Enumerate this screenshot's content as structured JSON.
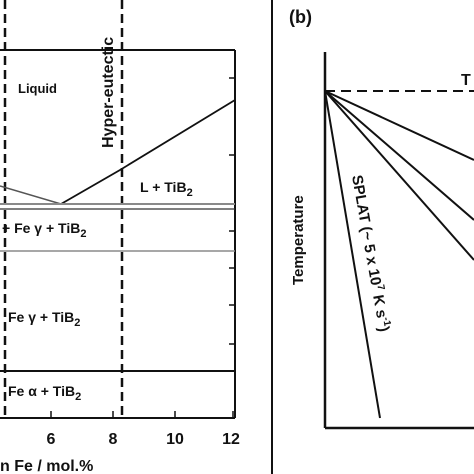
{
  "panel_a": {
    "x_axis": {
      "label": "n Fe / mol.%",
      "ticks": [
        "6",
        "8",
        "10",
        "12"
      ]
    },
    "eutectic_label": "Hyper-eutectic",
    "regions": {
      "liquid": "Liquid",
      "l_tib2": {
        "main": "L + TiB",
        "sub": "2"
      },
      "fegamma_tib2_upper": {
        "main": "+ Fe γ + TiB",
        "sub": "2"
      },
      "fegamma_tib2_lower": {
        "main": "Fe γ + TiB",
        "sub": "2"
      },
      "fealpha_tib2": {
        "main": "Fe α + TiB",
        "sub": "2"
      }
    }
  },
  "panel_b": {
    "panel_label": "(b)",
    "y_axis_label": "Temperature",
    "top_label_partial": "T",
    "splat": {
      "main": "SPLAT (~ 5 x 10",
      "exp": "7",
      "unit": " K s",
      "unit_exp": "-1",
      "close": ")"
    }
  },
  "colors": {
    "line": "#111111",
    "gray_line": "#8a8a8a",
    "background": "#ffffff"
  }
}
